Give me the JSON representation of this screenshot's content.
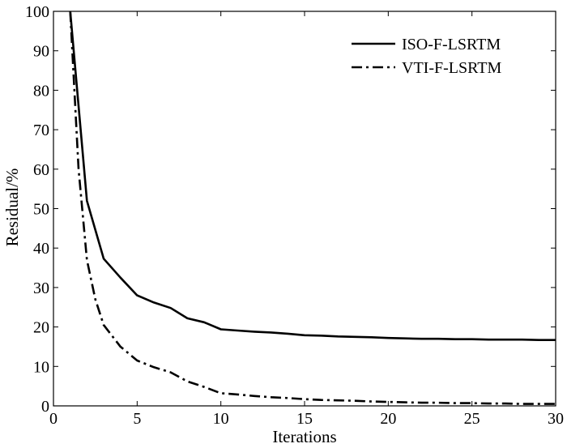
{
  "chart_data": {
    "type": "line",
    "xlabel": "Iterations",
    "ylabel": "Residual/%",
    "xlim": [
      0,
      30
    ],
    "ylim": [
      0,
      100
    ],
    "xticks": [
      0,
      5,
      10,
      15,
      20,
      25,
      30
    ],
    "yticks": [
      0,
      10,
      20,
      30,
      40,
      50,
      60,
      70,
      80,
      90,
      100
    ],
    "grid": false,
    "legend_position": "top-right",
    "series": [
      {
        "name": "ISO-F-LSRTM",
        "style": "solid",
        "color": "#000000",
        "x": [
          1,
          2,
          3,
          4,
          5,
          6,
          7,
          8,
          9,
          10,
          11,
          12,
          13,
          14,
          15,
          16,
          17,
          18,
          19,
          20,
          21,
          22,
          23,
          24,
          25,
          26,
          27,
          28,
          29,
          30
        ],
        "y": [
          100,
          52,
          37.3,
          32.5,
          28,
          26.2,
          24.8,
          22.2,
          21.2,
          19.4,
          19.1,
          18.8,
          18.6,
          18.3,
          17.9,
          17.8,
          17.6,
          17.5,
          17.4,
          17.2,
          17.1,
          17.0,
          17.0,
          16.9,
          16.9,
          16.8,
          16.8,
          16.8,
          16.7,
          16.7
        ]
      },
      {
        "name": "VTI-F-LSRTM",
        "style": "dashdot",
        "color": "#000000",
        "x": [
          1,
          1.5,
          2,
          2.5,
          3,
          4,
          5,
          6,
          7,
          8,
          9,
          10,
          11,
          12,
          13,
          14,
          15,
          16,
          17,
          18,
          19,
          20,
          21,
          22,
          23,
          24,
          25,
          26,
          27,
          28,
          29,
          30
        ],
        "y": [
          100,
          60,
          37,
          27,
          20.5,
          15,
          11.5,
          9.8,
          8.5,
          6.2,
          4.8,
          3.2,
          2.9,
          2.5,
          2.2,
          2.0,
          1.7,
          1.5,
          1.4,
          1.3,
          1.1,
          1.0,
          0.9,
          0.8,
          0.8,
          0.7,
          0.7,
          0.6,
          0.6,
          0.5,
          0.5,
          0.5
        ]
      }
    ]
  }
}
